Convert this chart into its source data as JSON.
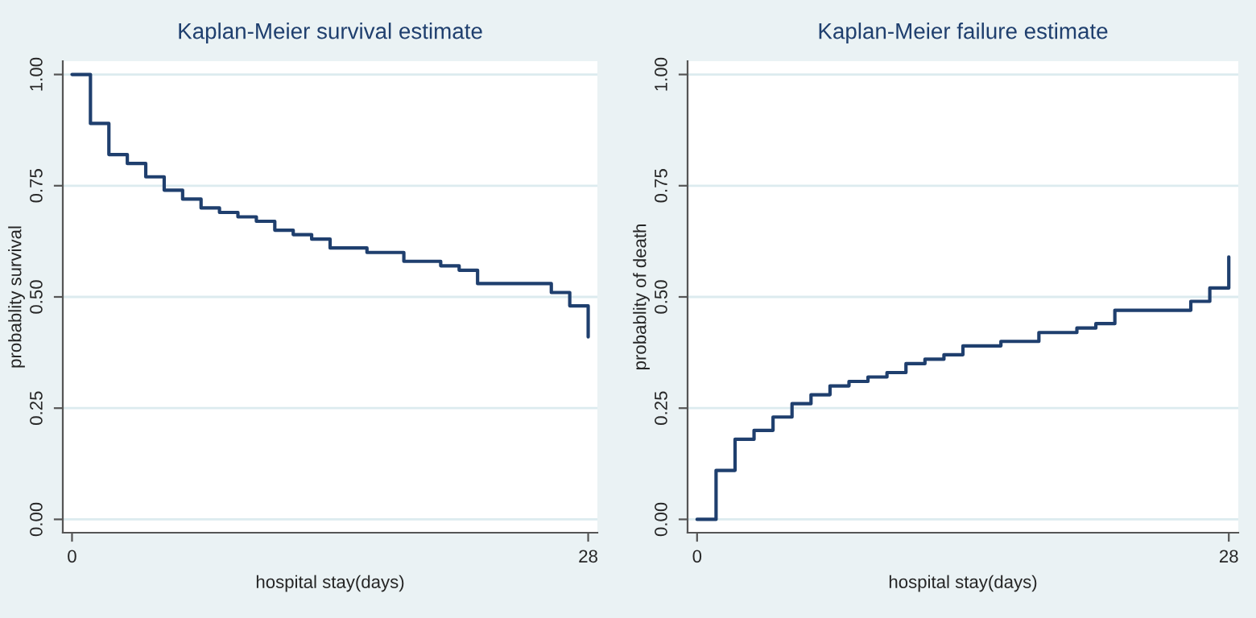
{
  "chart_data": [
    {
      "type": "step",
      "title": "Kaplan-Meier survival estimate",
      "xlabel": "hospital stay(days)",
      "ylabel": "probablity survival",
      "x": [
        0,
        1,
        2,
        3,
        4,
        5,
        6,
        7,
        8,
        9,
        10,
        11,
        12,
        13,
        14,
        16,
        18,
        20,
        21,
        22,
        26,
        27,
        28
      ],
      "values": [
        1.0,
        0.89,
        0.82,
        0.8,
        0.77,
        0.74,
        0.72,
        0.7,
        0.69,
        0.68,
        0.67,
        0.65,
        0.64,
        0.63,
        0.61,
        0.6,
        0.58,
        0.57,
        0.56,
        0.53,
        0.51,
        0.48,
        0.41
      ],
      "color": "#1f3f6e",
      "xlim": [
        -0.5,
        28.5
      ],
      "ylim": [
        -0.03,
        1.03
      ],
      "xticks": [
        0,
        28
      ],
      "yticks": [
        {
          "value": 0,
          "label": "0.00"
        },
        {
          "value": 0.25,
          "label": "0.25"
        },
        {
          "value": 0.5,
          "label": "0.50"
        },
        {
          "value": 0.75,
          "label": "0.75"
        },
        {
          "value": 1,
          "label": "1.00"
        }
      ],
      "grid": "y"
    },
    {
      "type": "step",
      "title": "Kaplan-Meier failure estimate",
      "xlabel": "hospital stay(days)",
      "ylabel": "probablity of death",
      "x": [
        0,
        1,
        2,
        3,
        4,
        5,
        6,
        7,
        8,
        9,
        10,
        11,
        12,
        13,
        14,
        16,
        18,
        20,
        21,
        22,
        26,
        27,
        28
      ],
      "values": [
        0.0,
        0.11,
        0.18,
        0.2,
        0.23,
        0.26,
        0.28,
        0.3,
        0.31,
        0.32,
        0.33,
        0.35,
        0.36,
        0.37,
        0.39,
        0.4,
        0.42,
        0.43,
        0.44,
        0.47,
        0.49,
        0.52,
        0.59
      ],
      "color": "#1f3f6e",
      "xlim": [
        -0.5,
        28.5
      ],
      "ylim": [
        -0.03,
        1.03
      ],
      "xticks": [
        0,
        28
      ],
      "yticks": [
        {
          "value": 0,
          "label": "0.00"
        },
        {
          "value": 0.25,
          "label": "0.25"
        },
        {
          "value": 0.5,
          "label": "0.50"
        },
        {
          "value": 0.75,
          "label": "0.75"
        },
        {
          "value": 1,
          "label": "1.00"
        }
      ],
      "grid": "y"
    }
  ]
}
